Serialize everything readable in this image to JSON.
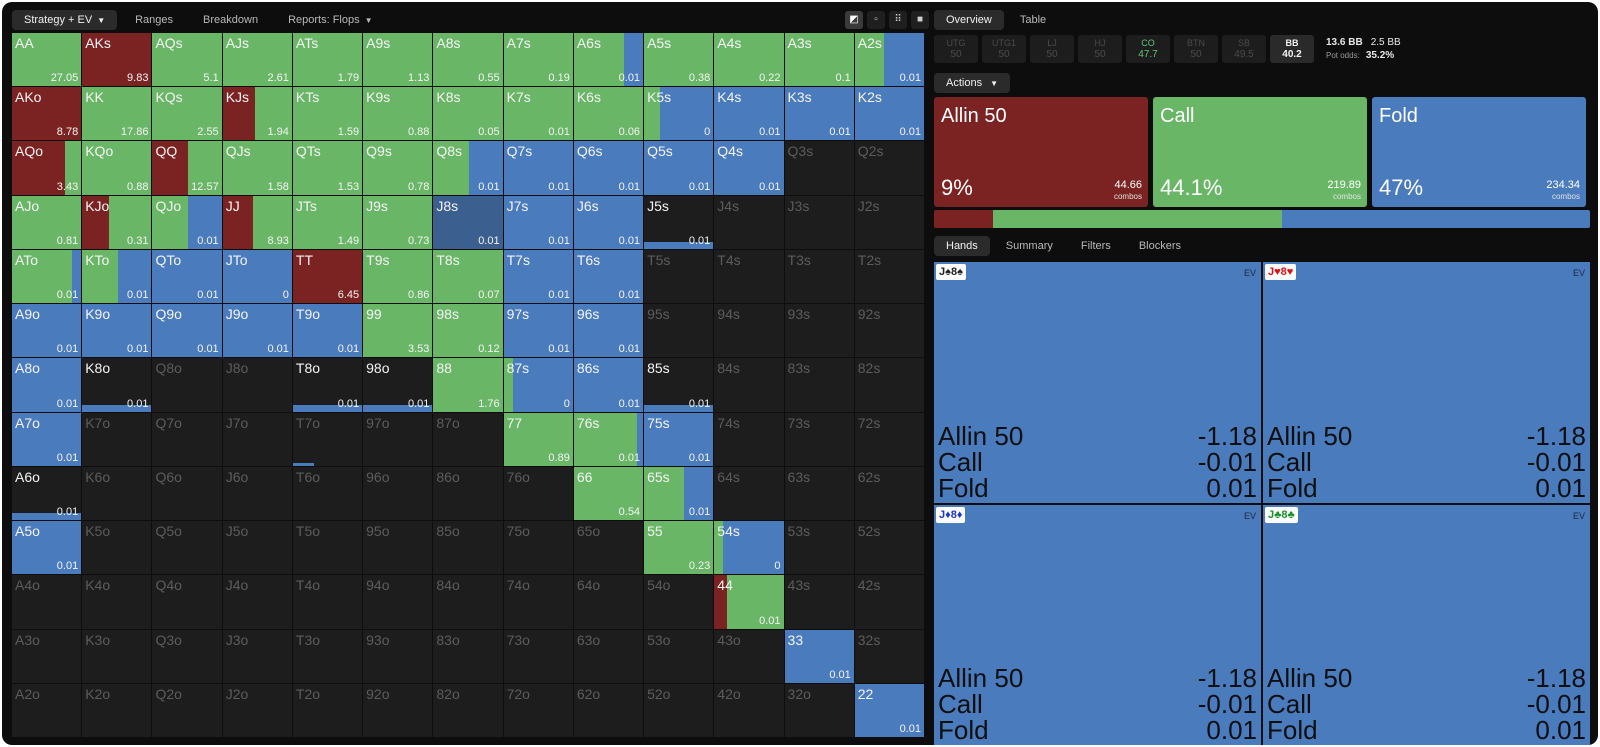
{
  "colors": {
    "allin": "#7a2322",
    "call": "#6ab667",
    "fold": "#4a7bbd",
    "selected": "#3b5f8f",
    "empty": "#1d1d1d"
  },
  "left_tabs": [
    {
      "label": "Strategy + EV",
      "caret": true,
      "active": true
    },
    {
      "label": "Ranges",
      "caret": false,
      "active": false
    },
    {
      "label": "Breakdown",
      "caret": false,
      "active": false
    },
    {
      "label": "Reports: Flops",
      "caret": true,
      "active": false
    }
  ],
  "view_icons": [
    "view-half-icon",
    "view-small-grid-icon",
    "view-grid-icon",
    "view-single-icon"
  ],
  "grid": [
    [
      {
        "h": "AA",
        "s": [
          0,
          100,
          0
        ],
        "ev": "27.05"
      },
      {
        "h": "AKs",
        "s": [
          100,
          0,
          0
        ],
        "ev": "9.83"
      },
      {
        "h": "AQs",
        "s": [
          0,
          100,
          0
        ],
        "ev": "5.1"
      },
      {
        "h": "AJs",
        "s": [
          0,
          100,
          0
        ],
        "ev": "2.61"
      },
      {
        "h": "ATs",
        "s": [
          0,
          100,
          0
        ],
        "ev": "1.79"
      },
      {
        "h": "A9s",
        "s": [
          0,
          100,
          0
        ],
        "ev": "1.13"
      },
      {
        "h": "A8s",
        "s": [
          0,
          100,
          0
        ],
        "ev": "0.55"
      },
      {
        "h": "A7s",
        "s": [
          0,
          100,
          0
        ],
        "ev": "0.19"
      },
      {
        "h": "A6s",
        "s": [
          0,
          73,
          27
        ],
        "ev": "0.01"
      },
      {
        "h": "A5s",
        "s": [
          0,
          100,
          0
        ],
        "ev": "0.38"
      },
      {
        "h": "A4s",
        "s": [
          0,
          100,
          0
        ],
        "ev": "0.22"
      },
      {
        "h": "A3s",
        "s": [
          0,
          100,
          0
        ],
        "ev": "0.1"
      },
      {
        "h": "A2s",
        "s": [
          0,
          42,
          58
        ],
        "ev": "0.01"
      }
    ],
    [
      {
        "h": "AKo",
        "s": [
          100,
          0,
          0
        ],
        "ev": "8.78"
      },
      {
        "h": "KK",
        "s": [
          0,
          100,
          0
        ],
        "ev": "17.86"
      },
      {
        "h": "KQs",
        "s": [
          0,
          100,
          0
        ],
        "ev": "2.55"
      },
      {
        "h": "KJs",
        "s": [
          47,
          53,
          0
        ],
        "ev": "1.94"
      },
      {
        "h": "KTs",
        "s": [
          0,
          100,
          0
        ],
        "ev": "1.59"
      },
      {
        "h": "K9s",
        "s": [
          0,
          100,
          0
        ],
        "ev": "0.88"
      },
      {
        "h": "K8s",
        "s": [
          0,
          100,
          0
        ],
        "ev": "0.05"
      },
      {
        "h": "K7s",
        "s": [
          0,
          100,
          0
        ],
        "ev": "0.01"
      },
      {
        "h": "K6s",
        "s": [
          0,
          100,
          0
        ],
        "ev": "0.06"
      },
      {
        "h": "K5s",
        "s": [
          0,
          23,
          77
        ],
        "ev": "0"
      },
      {
        "h": "K4s",
        "s": [
          0,
          0,
          100
        ],
        "ev": "0.01"
      },
      {
        "h": "K3s",
        "s": [
          0,
          0,
          100
        ],
        "ev": "0.01"
      },
      {
        "h": "K2s",
        "s": [
          0,
          0,
          100
        ],
        "ev": "0.01"
      }
    ],
    [
      {
        "h": "AQo",
        "s": [
          76,
          24,
          0
        ],
        "ev": "3.43"
      },
      {
        "h": "KQo",
        "s": [
          0,
          100,
          0
        ],
        "ev": "0.88"
      },
      {
        "h": "QQ",
        "s": [
          52,
          48,
          0
        ],
        "ev": "12.57"
      },
      {
        "h": "QJs",
        "s": [
          0,
          100,
          0
        ],
        "ev": "1.58"
      },
      {
        "h": "QTs",
        "s": [
          0,
          100,
          0
        ],
        "ev": "1.53"
      },
      {
        "h": "Q9s",
        "s": [
          0,
          100,
          0
        ],
        "ev": "0.78"
      },
      {
        "h": "Q8s",
        "s": [
          0,
          51,
          49
        ],
        "ev": "0.01"
      },
      {
        "h": "Q7s",
        "s": [
          0,
          0,
          100
        ],
        "ev": "0.01"
      },
      {
        "h": "Q6s",
        "s": [
          0,
          0,
          100
        ],
        "ev": "0.01"
      },
      {
        "h": "Q5s",
        "s": [
          0,
          0,
          100
        ],
        "ev": "0.01"
      },
      {
        "h": "Q4s",
        "s": [
          0,
          0,
          100
        ],
        "ev": "0.01"
      },
      {
        "h": "Q3s",
        "e": true
      },
      {
        "h": "Q2s",
        "e": true
      }
    ],
    [
      {
        "h": "AJo",
        "s": [
          0,
          100,
          0
        ],
        "ev": "0.81"
      },
      {
        "h": "KJo",
        "s": [
          38,
          62,
          0
        ],
        "ev": "0.31"
      },
      {
        "h": "QJo",
        "s": [
          0,
          51,
          49
        ],
        "ev": "0.01"
      },
      {
        "h": "JJ",
        "s": [
          44,
          56,
          0
        ],
        "ev": "8.93"
      },
      {
        "h": "JTs",
        "s": [
          0,
          100,
          0
        ],
        "ev": "1.49"
      },
      {
        "h": "J9s",
        "s": [
          0,
          100,
          0
        ],
        "ev": "0.73"
      },
      {
        "h": "J8s",
        "s": [
          0,
          0,
          100
        ],
        "ev": "0.01",
        "sel": true
      },
      {
        "h": "J7s",
        "s": [
          0,
          0,
          100
        ],
        "ev": "0.01"
      },
      {
        "h": "J6s",
        "s": [
          0,
          0,
          100
        ],
        "ev": "0.01"
      },
      {
        "h": "J5s",
        "s": [
          0,
          0,
          100
        ],
        "ev": "0.01",
        "bar": true
      },
      {
        "h": "J4s",
        "e": true
      },
      {
        "h": "J3s",
        "e": true
      },
      {
        "h": "J2s",
        "e": true
      }
    ],
    [
      {
        "h": "ATo",
        "s": [
          0,
          87,
          13
        ],
        "ev": "0.01"
      },
      {
        "h": "KTo",
        "s": [
          0,
          51,
          49
        ],
        "ev": "0.01"
      },
      {
        "h": "QTo",
        "s": [
          0,
          0,
          100
        ],
        "ev": "0.01"
      },
      {
        "h": "JTo",
        "s": [
          0,
          0,
          100
        ],
        "ev": "0"
      },
      {
        "h": "TT",
        "s": [
          100,
          0,
          0
        ],
        "ev": "6.45"
      },
      {
        "h": "T9s",
        "s": [
          0,
          100,
          0
        ],
        "ev": "0.86"
      },
      {
        "h": "T8s",
        "s": [
          0,
          100,
          0
        ],
        "ev": "0.07"
      },
      {
        "h": "T7s",
        "s": [
          0,
          0,
          100
        ],
        "ev": "0.01"
      },
      {
        "h": "T6s",
        "s": [
          0,
          0,
          100
        ],
        "ev": "0.01"
      },
      {
        "h": "T5s",
        "e": true
      },
      {
        "h": "T4s",
        "e": true
      },
      {
        "h": "T3s",
        "e": true
      },
      {
        "h": "T2s",
        "e": true
      }
    ],
    [
      {
        "h": "A9o",
        "s": [
          0,
          0,
          100
        ],
        "ev": "0.01"
      },
      {
        "h": "K9o",
        "s": [
          0,
          0,
          100
        ],
        "ev": "0.01"
      },
      {
        "h": "Q9o",
        "s": [
          0,
          0,
          100
        ],
        "ev": "0.01"
      },
      {
        "h": "J9o",
        "s": [
          0,
          0,
          100
        ],
        "ev": "0.01"
      },
      {
        "h": "T9o",
        "s": [
          0,
          0,
          100
        ],
        "ev": "0.01"
      },
      {
        "h": "99",
        "s": [
          0,
          100,
          0
        ],
        "ev": "3.53"
      },
      {
        "h": "98s",
        "s": [
          0,
          100,
          0
        ],
        "ev": "0.12"
      },
      {
        "h": "97s",
        "s": [
          0,
          0,
          100
        ],
        "ev": "0.01"
      },
      {
        "h": "96s",
        "s": [
          0,
          0,
          100
        ],
        "ev": "0.01"
      },
      {
        "h": "95s",
        "e": true
      },
      {
        "h": "94s",
        "e": true
      },
      {
        "h": "93s",
        "e": true
      },
      {
        "h": "92s",
        "e": true
      }
    ],
    [
      {
        "h": "A8o",
        "s": [
          0,
          0,
          100
        ],
        "ev": "0.01"
      },
      {
        "h": "K8o",
        "s": [
          0,
          0,
          100
        ],
        "ev": "0.01",
        "bar": true
      },
      {
        "h": "Q8o",
        "e": true
      },
      {
        "h": "J8o",
        "e": true
      },
      {
        "h": "T8o",
        "s": [
          0,
          0,
          100
        ],
        "ev": "0.01",
        "bar": true
      },
      {
        "h": "98o",
        "s": [
          0,
          0,
          100
        ],
        "ev": "0.01",
        "bar": true
      },
      {
        "h": "88",
        "s": [
          0,
          100,
          0
        ],
        "ev": "1.76"
      },
      {
        "h": "87s",
        "s": [
          0,
          13,
          87
        ],
        "ev": "0"
      },
      {
        "h": "86s",
        "s": [
          0,
          0,
          100
        ],
        "ev": "0.01"
      },
      {
        "h": "85s",
        "s": [
          0,
          0,
          100
        ],
        "ev": "0.01",
        "bar": true
      },
      {
        "h": "84s",
        "e": true
      },
      {
        "h": "83s",
        "e": true
      },
      {
        "h": "82s",
        "e": true
      }
    ],
    [
      {
        "h": "A7o",
        "s": [
          0,
          0,
          100
        ],
        "ev": "0.01"
      },
      {
        "h": "K7o",
        "e": true
      },
      {
        "h": "Q7o",
        "e": true
      },
      {
        "h": "J7o",
        "e": true
      },
      {
        "h": "T7o",
        "e": true,
        "bar": true
      },
      {
        "h": "97o",
        "e": true
      },
      {
        "h": "87o",
        "e": true
      },
      {
        "h": "77",
        "s": [
          0,
          100,
          0
        ],
        "ev": "0.89"
      },
      {
        "h": "76s",
        "s": [
          0,
          91,
          9
        ],
        "ev": "0.01"
      },
      {
        "h": "75s",
        "s": [
          0,
          0,
          100
        ],
        "ev": "0.01"
      },
      {
        "h": "74s",
        "e": true
      },
      {
        "h": "73s",
        "e": true
      },
      {
        "h": "72s",
        "e": true
      }
    ],
    [
      {
        "h": "A6o",
        "s": [
          0,
          0,
          100
        ],
        "ev": "0.01",
        "bar": true
      },
      {
        "h": "K6o",
        "e": true
      },
      {
        "h": "Q6o",
        "e": true
      },
      {
        "h": "J6o",
        "e": true
      },
      {
        "h": "T6o",
        "e": true
      },
      {
        "h": "96o",
        "e": true
      },
      {
        "h": "86o",
        "e": true
      },
      {
        "h": "76o",
        "e": true
      },
      {
        "h": "66",
        "s": [
          0,
          100,
          0
        ],
        "ev": "0.54"
      },
      {
        "h": "65s",
        "s": [
          0,
          57,
          43
        ],
        "ev": "0.01"
      },
      {
        "h": "64s",
        "e": true
      },
      {
        "h": "63s",
        "e": true
      },
      {
        "h": "62s",
        "e": true
      }
    ],
    [
      {
        "h": "A5o",
        "s": [
          0,
          0,
          100
        ],
        "ev": "0.01"
      },
      {
        "h": "K5o",
        "e": true
      },
      {
        "h": "Q5o",
        "e": true
      },
      {
        "h": "J5o",
        "e": true
      },
      {
        "h": "T5o",
        "e": true
      },
      {
        "h": "95o",
        "e": true
      },
      {
        "h": "85o",
        "e": true
      },
      {
        "h": "75o",
        "e": true
      },
      {
        "h": "65o",
        "e": true
      },
      {
        "h": "55",
        "s": [
          0,
          100,
          0
        ],
        "ev": "0.23"
      },
      {
        "h": "54s",
        "s": [
          0,
          13,
          87
        ],
        "ev": "0"
      },
      {
        "h": "53s",
        "e": true
      },
      {
        "h": "52s",
        "e": true
      }
    ],
    [
      {
        "h": "A4o",
        "e": true
      },
      {
        "h": "K4o",
        "e": true
      },
      {
        "h": "Q4o",
        "e": true
      },
      {
        "h": "J4o",
        "e": true
      },
      {
        "h": "T4o",
        "e": true
      },
      {
        "h": "94o",
        "e": true
      },
      {
        "h": "84o",
        "e": true
      },
      {
        "h": "74o",
        "e": true
      },
      {
        "h": "64o",
        "e": true
      },
      {
        "h": "54o",
        "e": true
      },
      {
        "h": "44",
        "s": [
          18,
          82,
          0
        ],
        "ev": "0.01"
      },
      {
        "h": "43s",
        "e": true
      },
      {
        "h": "42s",
        "e": true
      }
    ],
    [
      {
        "h": "A3o",
        "e": true
      },
      {
        "h": "K3o",
        "e": true
      },
      {
        "h": "Q3o",
        "e": true
      },
      {
        "h": "J3o",
        "e": true
      },
      {
        "h": "T3o",
        "e": true
      },
      {
        "h": "93o",
        "e": true
      },
      {
        "h": "83o",
        "e": true
      },
      {
        "h": "73o",
        "e": true
      },
      {
        "h": "63o",
        "e": true
      },
      {
        "h": "53o",
        "e": true
      },
      {
        "h": "43o",
        "e": true
      },
      {
        "h": "33",
        "s": [
          0,
          0,
          100
        ],
        "ev": "0.01"
      },
      {
        "h": "32s",
        "e": true
      }
    ],
    [
      {
        "h": "A2o",
        "e": true
      },
      {
        "h": "K2o",
        "e": true
      },
      {
        "h": "Q2o",
        "e": true
      },
      {
        "h": "J2o",
        "e": true
      },
      {
        "h": "T2o",
        "e": true
      },
      {
        "h": "92o",
        "e": true
      },
      {
        "h": "82o",
        "e": true
      },
      {
        "h": "72o",
        "e": true
      },
      {
        "h": "62o",
        "e": true
      },
      {
        "h": "52o",
        "e": true
      },
      {
        "h": "42o",
        "e": true
      },
      {
        "h": "32o",
        "e": true
      },
      {
        "h": "22",
        "s": [
          0,
          0,
          100
        ],
        "ev": "0.01"
      }
    ]
  ],
  "right_tabs": [
    {
      "label": "Overview",
      "active": true
    },
    {
      "label": "Table",
      "active": false
    }
  ],
  "positions": [
    {
      "name": "UTG",
      "val": "50"
    },
    {
      "name": "UTG1",
      "val": "50"
    },
    {
      "name": "LJ",
      "val": "50"
    },
    {
      "name": "HJ",
      "val": "50"
    },
    {
      "name": "CO",
      "val": "47.7"
    },
    {
      "name": "BTN",
      "val": "50"
    },
    {
      "name": "SB",
      "val": "49.5"
    },
    {
      "name": "BB",
      "val": "40.2"
    }
  ],
  "stacks": {
    "bb_line": "13.6 BB",
    "pot": "2.5 BB",
    "pot_odds_label": "Pot odds:",
    "pot_odds": "35.2%"
  },
  "actions_label": "Actions",
  "actions": [
    {
      "name": "Allin 50",
      "pct": "9%",
      "combos": "44.66",
      "combos_label": "combos",
      "freq": 9
    },
    {
      "name": "Call",
      "pct": "44.1%",
      "combos": "219.89",
      "combos_label": "combos",
      "freq": 44.1
    },
    {
      "name": "Fold",
      "pct": "47%",
      "combos": "234.34",
      "combos_label": "combos",
      "freq": 47
    }
  ],
  "hand_tabs": [
    {
      "label": "Hands",
      "active": true
    },
    {
      "label": "Summary",
      "active": false
    },
    {
      "label": "Filters",
      "active": false
    },
    {
      "label": "Blockers",
      "active": false
    }
  ],
  "hands": [
    {
      "card": "J♠8♠",
      "color": "#222",
      "ev_label": "EV",
      "rows": [
        {
          "a": "Allin 50",
          "v": "-1.18"
        },
        {
          "a": "Call",
          "v": "-0.01"
        },
        {
          "a": "Fold",
          "v": "0.01"
        }
      ]
    },
    {
      "card": "J♥8♥",
      "color": "#d11",
      "ev_label": "EV",
      "rows": [
        {
          "a": "Allin 50",
          "v": "-1.18"
        },
        {
          "a": "Call",
          "v": "-0.01"
        },
        {
          "a": "Fold",
          "v": "0.01"
        }
      ]
    },
    {
      "card": "J♦8♦",
      "color": "#1a37c9",
      "ev_label": "EV",
      "rows": [
        {
          "a": "Allin 50",
          "v": "-1.18"
        },
        {
          "a": "Call",
          "v": "-0.01"
        },
        {
          "a": "Fold",
          "v": "0.01"
        }
      ]
    },
    {
      "card": "J♣8♣",
      "color": "#1a8f2a",
      "ev_label": "EV",
      "rows": [
        {
          "a": "Allin 50",
          "v": "-1.18"
        },
        {
          "a": "Call",
          "v": "-0.01"
        },
        {
          "a": "Fold",
          "v": "0.01"
        }
      ]
    }
  ]
}
